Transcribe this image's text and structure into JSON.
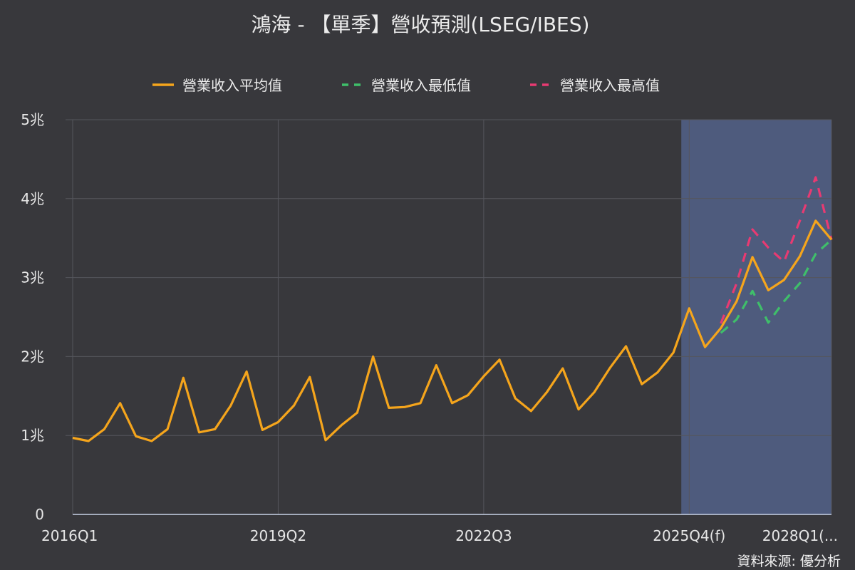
{
  "chart_data": {
    "type": "line",
    "title": "鴻海 - 【單季】營收預測(LSEG/IBES)",
    "source": "資料來源: 優分析",
    "ylim": [
      0,
      5
    ],
    "y_ticks": [
      {
        "value": 0,
        "label": "0"
      },
      {
        "value": 1,
        "label": "1兆"
      },
      {
        "value": 2,
        "label": "2兆"
      },
      {
        "value": 3,
        "label": "3兆"
      },
      {
        "value": 4,
        "label": "4兆"
      },
      {
        "value": 5,
        "label": "5兆"
      }
    ],
    "x_ticks": [
      {
        "index": 0,
        "label": "2016Q1"
      },
      {
        "index": 13,
        "label": "2019Q2"
      },
      {
        "index": 26,
        "label": "2022Q3"
      },
      {
        "index": 39,
        "label": "2025Q4(f)"
      },
      {
        "index": 48,
        "label": "2028Q1(..."
      }
    ],
    "grid": true,
    "legend_position": "top-center",
    "forecast_region": {
      "start_index": 38.5,
      "end_index": 48,
      "color": "#4e5b7d"
    },
    "series": [
      {
        "name": "營業收入平均值",
        "color": "#f5a51c",
        "style": "solid",
        "start_index": 0,
        "values": [
          0.97,
          0.93,
          1.08,
          1.41,
          0.99,
          0.93,
          1.08,
          1.73,
          1.04,
          1.08,
          1.38,
          1.81,
          1.07,
          1.17,
          1.38,
          1.74,
          0.94,
          1.13,
          1.29,
          2.0,
          1.35,
          1.36,
          1.41,
          1.89,
          1.41,
          1.51,
          1.75,
          1.96,
          1.47,
          1.31,
          1.55,
          1.85,
          1.33,
          1.55,
          1.86,
          2.13,
          1.65,
          1.8,
          2.05,
          2.61,
          2.12,
          2.36,
          2.7,
          3.26,
          2.84,
          2.97,
          3.27,
          3.72,
          3.48
        ]
      },
      {
        "name": "營業收入最低值",
        "color": "#3fbf6a",
        "style": "dashed",
        "start_index": 41,
        "values": [
          2.3,
          2.47,
          2.83,
          2.43,
          2.7,
          2.93,
          3.3,
          3.48
        ]
      },
      {
        "name": "營業收入最高值",
        "color": "#e83a72",
        "style": "dashed",
        "start_index": 41,
        "values": [
          2.42,
          2.93,
          3.61,
          3.38,
          3.2,
          3.72,
          4.27,
          3.48
        ]
      }
    ]
  }
}
